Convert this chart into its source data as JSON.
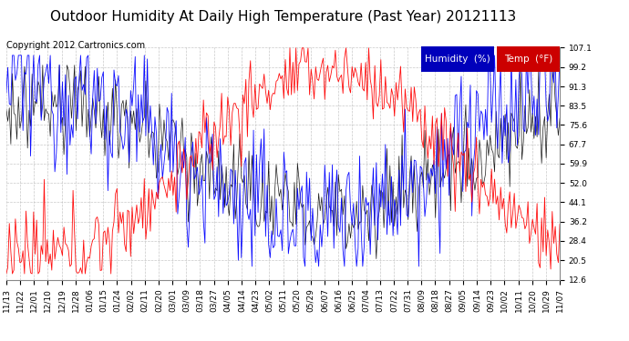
{
  "title": "Outdoor Humidity At Daily High Temperature (Past Year) 20121113",
  "copyright": "Copyright 2012 Cartronics.com",
  "ylabel_right": [
    "107.1",
    "99.2",
    "91.3",
    "83.5",
    "75.6",
    "67.7",
    "59.9",
    "52.0",
    "44.1",
    "36.2",
    "28.4",
    "20.5",
    "12.6"
  ],
  "ytick_vals": [
    107.1,
    99.2,
    91.3,
    83.5,
    75.6,
    67.7,
    59.9,
    52.0,
    44.1,
    36.2,
    28.4,
    20.5,
    12.6
  ],
  "ymin": 12.6,
  "ymax": 107.1,
  "xtick_labels": [
    "11/13",
    "11/22",
    "12/01",
    "12/10",
    "12/19",
    "12/28",
    "01/06",
    "01/15",
    "01/24",
    "02/02",
    "02/11",
    "02/20",
    "03/01",
    "03/09",
    "03/18",
    "03/27",
    "04/05",
    "04/14",
    "04/23",
    "05/02",
    "05/11",
    "05/20",
    "05/29",
    "06/07",
    "06/16",
    "06/25",
    "07/04",
    "07/13",
    "07/22",
    "07/31",
    "08/09",
    "08/18",
    "08/27",
    "09/05",
    "09/14",
    "09/23",
    "10/02",
    "10/11",
    "10/20",
    "10/29",
    "11/07"
  ],
  "humidity_color": "#0000ff",
  "temp_color": "#ff0000",
  "black_line_color": "#000000",
  "bg_color": "#ffffff",
  "grid_color": "#bbbbbb",
  "legend_humidity_bg": "#0000bb",
  "legend_temp_bg": "#cc0000",
  "title_fontsize": 11,
  "tick_fontsize": 6.5,
  "copyright_fontsize": 7,
  "legend_fontsize": 7.5
}
